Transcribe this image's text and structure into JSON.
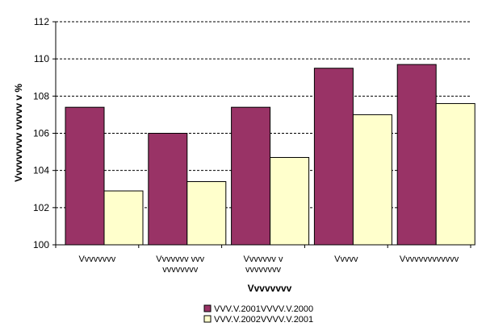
{
  "chart_data": {
    "type": "bar",
    "xlabel": "Vvvvvvvv",
    "ylabel": "Vvvvvvvvv vvvvv v %",
    "ylim": [
      100,
      112
    ],
    "yticks": [
      "100",
      "102",
      "104",
      "106",
      "108",
      "110",
      "112"
    ],
    "grid": "horizontal dashed",
    "legend_position": "bottom",
    "categories": [
      [
        "Vvvvvvvv"
      ],
      [
        "Vvvvvvv vvv",
        "vvvvvvvv"
      ],
      [
        "Vvvvvvv v",
        "vvvvvvvv"
      ],
      [
        "Vvvvv"
      ],
      [
        "Vvvvvvvvvvvvv"
      ]
    ],
    "series": [
      {
        "name": "VVV.V.2001VVVV.V.2000",
        "color": "#993366",
        "values": [
          107.4,
          106.0,
          107.4,
          109.5,
          109.7
        ]
      },
      {
        "name": "VVV.V.2002VVVV.V.2001",
        "color": "#FFFFCC",
        "values": [
          102.9,
          103.4,
          104.7,
          107.0,
          107.6
        ]
      }
    ]
  }
}
